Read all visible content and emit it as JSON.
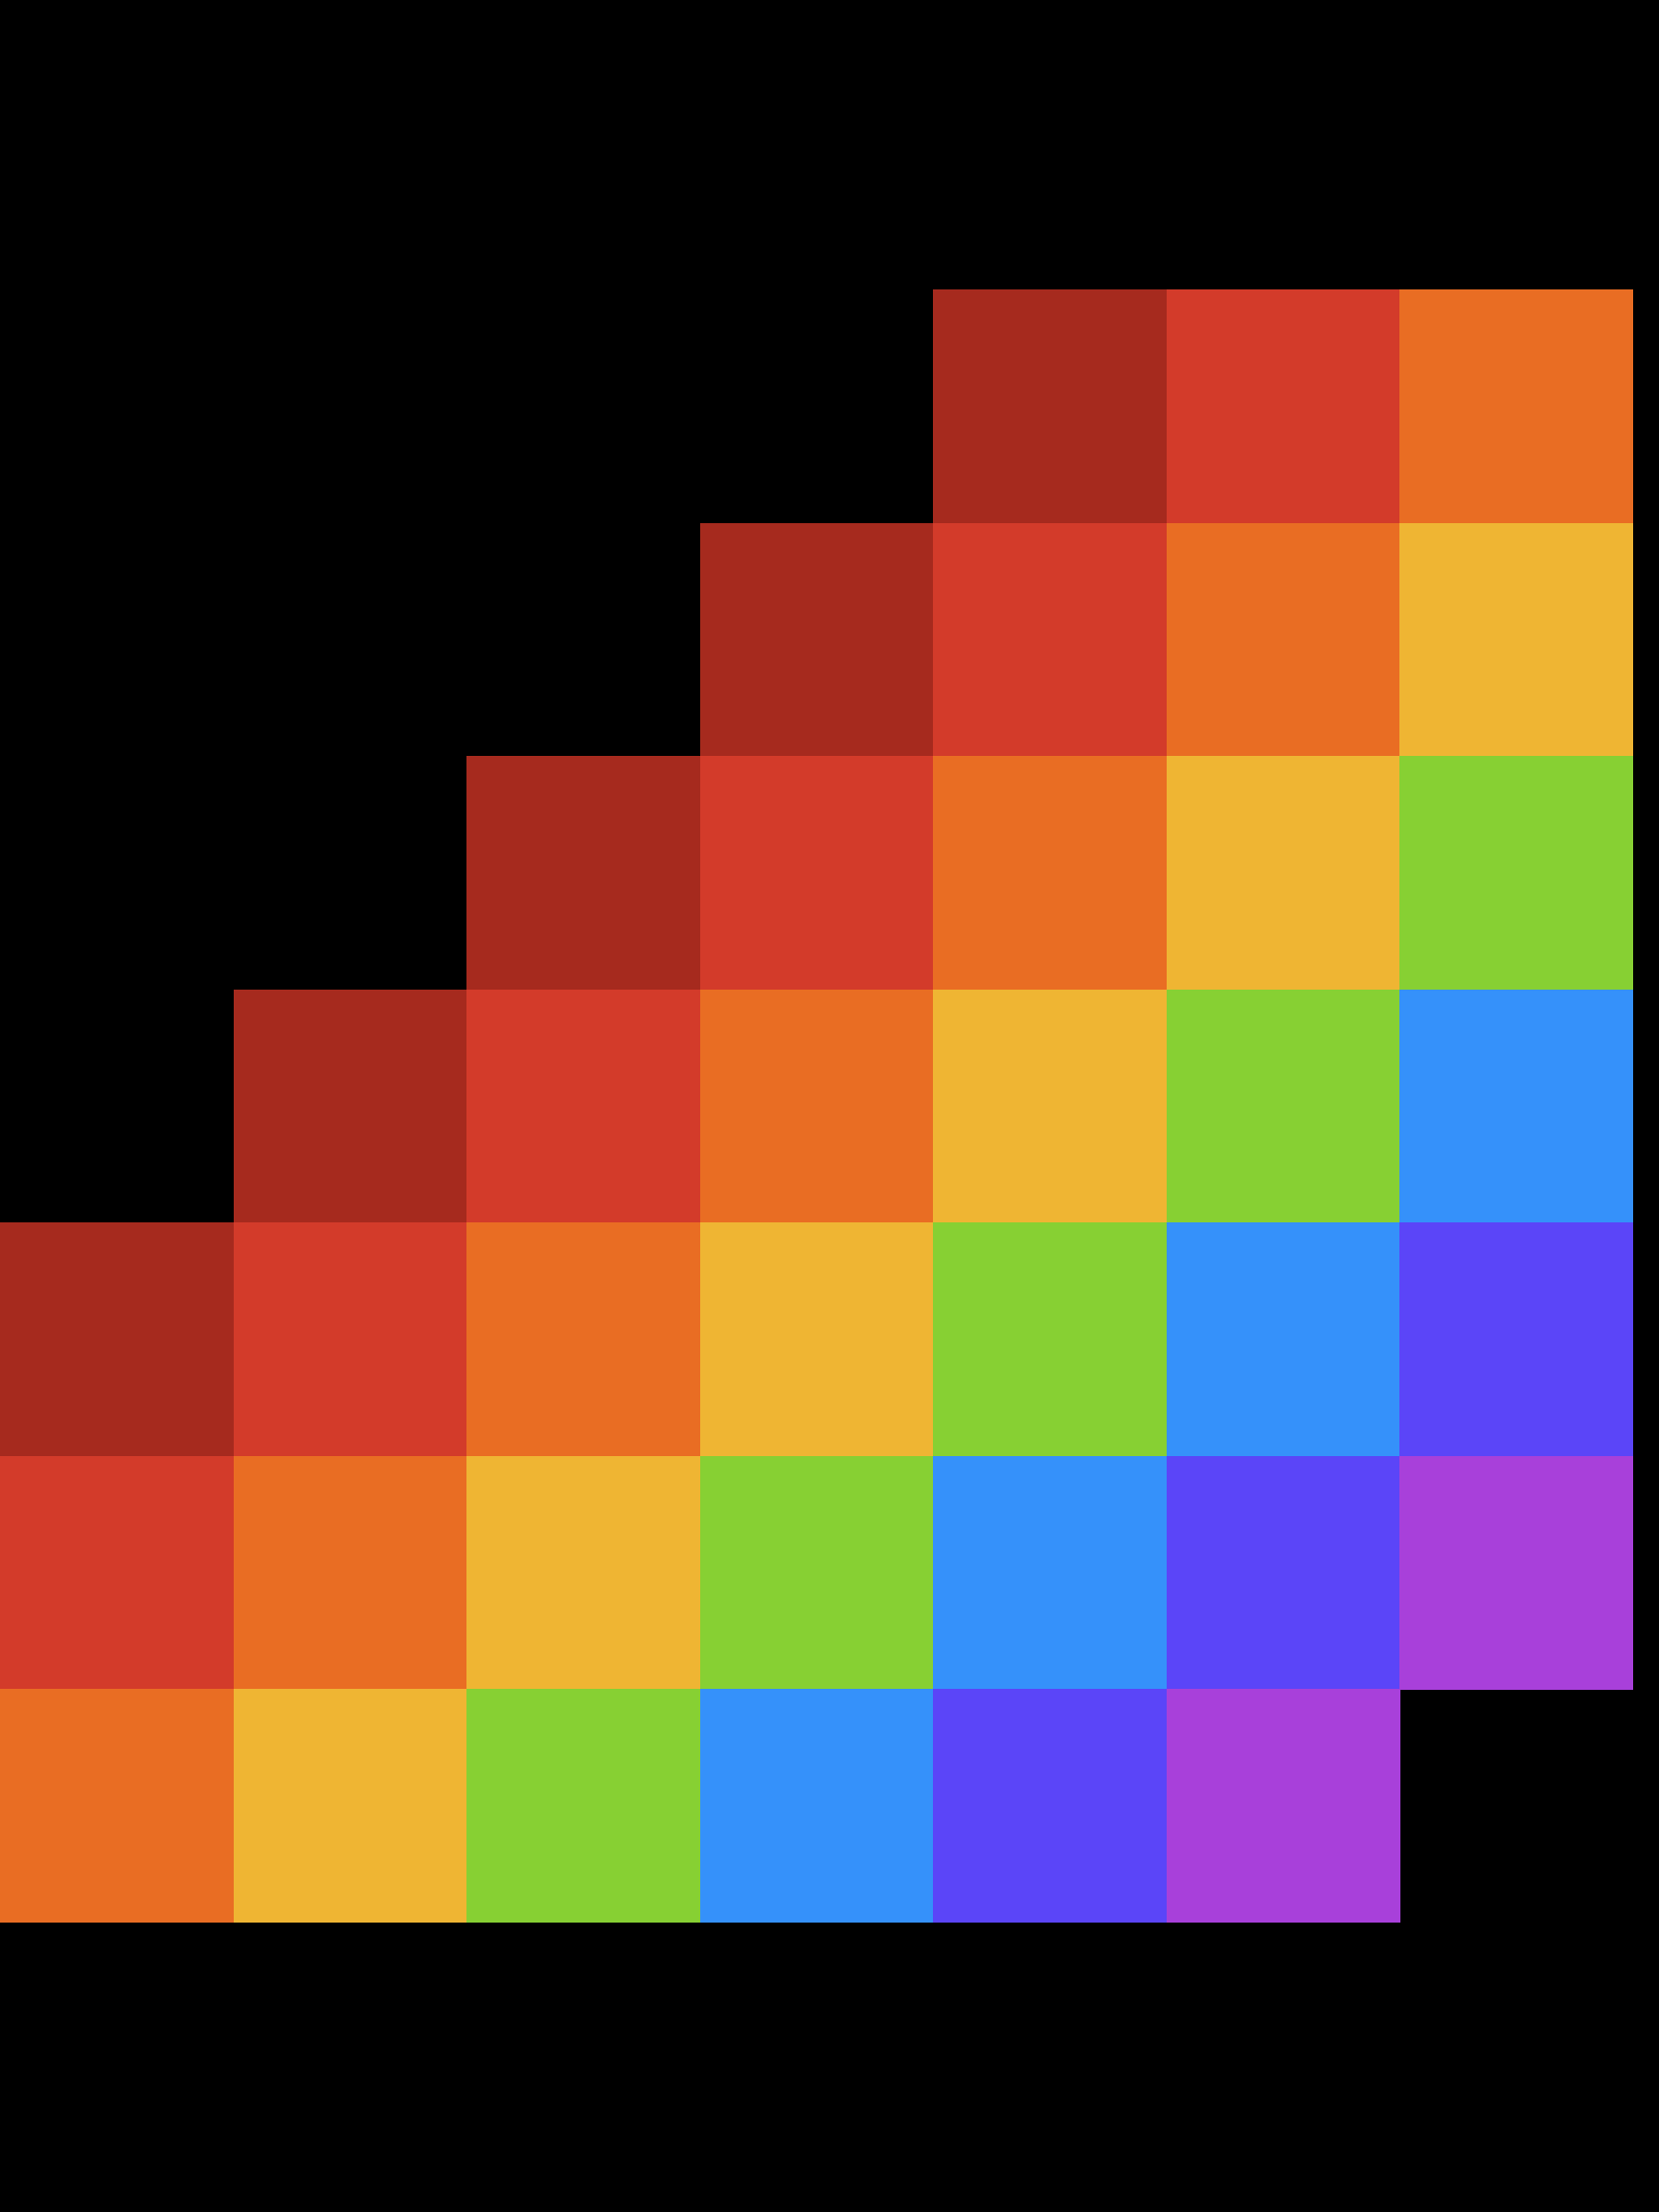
{
  "palette": [
    "#A62A1E",
    "#D33B2A",
    "#E96D23",
    "#EFB533",
    "#87D033",
    "#3591FA",
    "#5B45F8",
    "#A840DA"
  ],
  "grid": {
    "rows": 7,
    "cols": 7,
    "cells": [
      [
        null,
        null,
        null,
        null,
        0,
        1,
        2
      ],
      [
        null,
        null,
        null,
        0,
        1,
        2,
        3
      ],
      [
        null,
        null,
        0,
        1,
        2,
        3,
        4
      ],
      [
        null,
        0,
        1,
        2,
        3,
        4,
        5
      ],
      [
        0,
        1,
        2,
        3,
        4,
        5,
        6
      ],
      [
        1,
        2,
        3,
        4,
        5,
        6,
        7
      ],
      [
        2,
        3,
        4,
        5,
        6,
        7,
        null
      ]
    ]
  }
}
